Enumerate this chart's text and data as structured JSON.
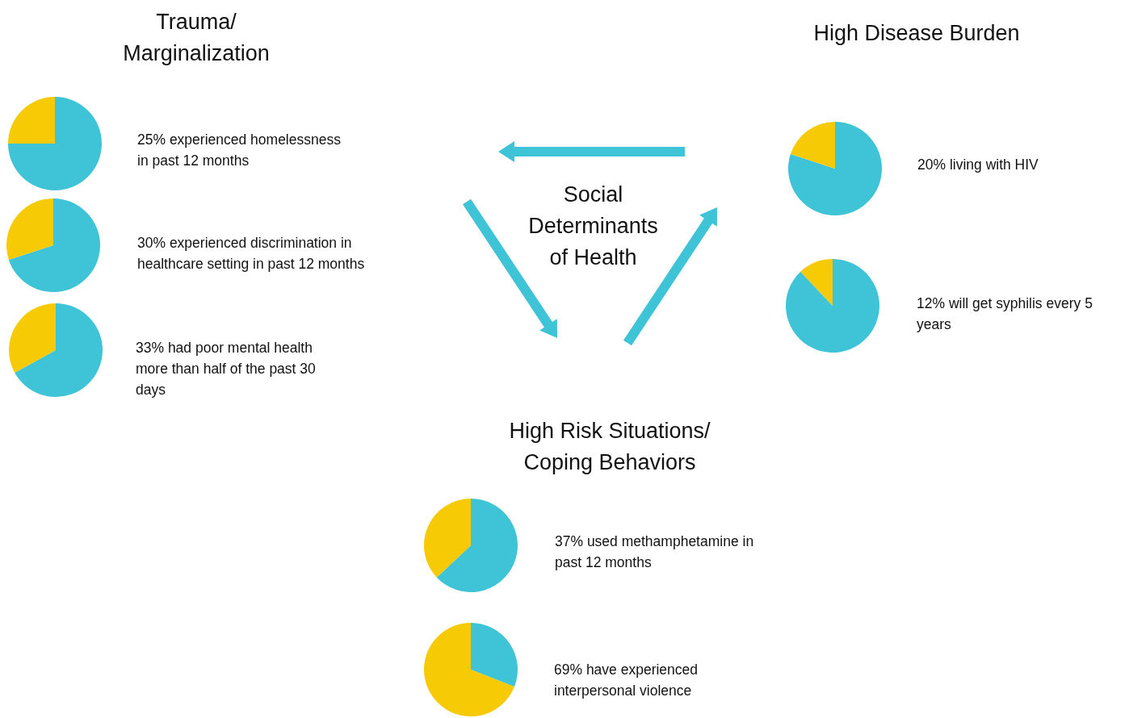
{
  "chart_data": [
    {
      "type": "other",
      "title": "Trauma/ Marginalization"
    },
    {
      "type": "pie",
      "categories": [
        null,
        null
      ],
      "values": [
        75,
        25
      ],
      "colors": [
        "#3ec3d7",
        "#f6ca05"
      ],
      "annotations": [
        "25% experienced homelessness in past 12 months"
      ]
    },
    {
      "type": "pie",
      "categories": [
        null,
        null
      ],
      "values": [
        70,
        30
      ],
      "colors": [
        "#3ec3d7",
        "#f6ca05"
      ],
      "annotations": [
        "30% experienced discrimination in healthcare setting in past 12 months"
      ]
    },
    {
      "type": "pie",
      "categories": [
        null,
        null
      ],
      "values": [
        67,
        33
      ],
      "colors": [
        "#3ec3d7",
        "#f6ca05"
      ],
      "annotations": [
        "33% had poor mental health more than half of the past 30 days"
      ]
    },
    {
      "type": "other",
      "title": "High Disease Burden"
    },
    {
      "type": "pie",
      "categories": [
        null,
        null
      ],
      "values": [
        80,
        20
      ],
      "colors": [
        "#3ec3d7",
        "#f6ca05"
      ],
      "annotations": [
        "20% living with HIV"
      ]
    },
    {
      "type": "pie",
      "categories": [
        null,
        null
      ],
      "values": [
        88,
        12
      ],
      "colors": [
        "#3ec3d7",
        "#f6ca05"
      ],
      "annotations": [
        "12% will get syphilis every 5 years"
      ]
    },
    {
      "type": "other",
      "title": "Social Determinants of Health"
    },
    {
      "type": "other",
      "title": "High Risk Situations/ Coping Behaviors"
    },
    {
      "type": "pie",
      "categories": [
        null,
        null
      ],
      "values": [
        63,
        37
      ],
      "colors": [
        "#3ec3d7",
        "#f6ca05"
      ],
      "annotations": [
        "37% used methamphetamine in past 12 months"
      ]
    },
    {
      "type": "pie",
      "categories": [
        null,
        null
      ],
      "values": [
        31,
        69
      ],
      "colors": [
        "#3ec3d7",
        "#f6ca05"
      ],
      "annotations": [
        "69% have experienced interpersonal violence"
      ]
    }
  ]
}
